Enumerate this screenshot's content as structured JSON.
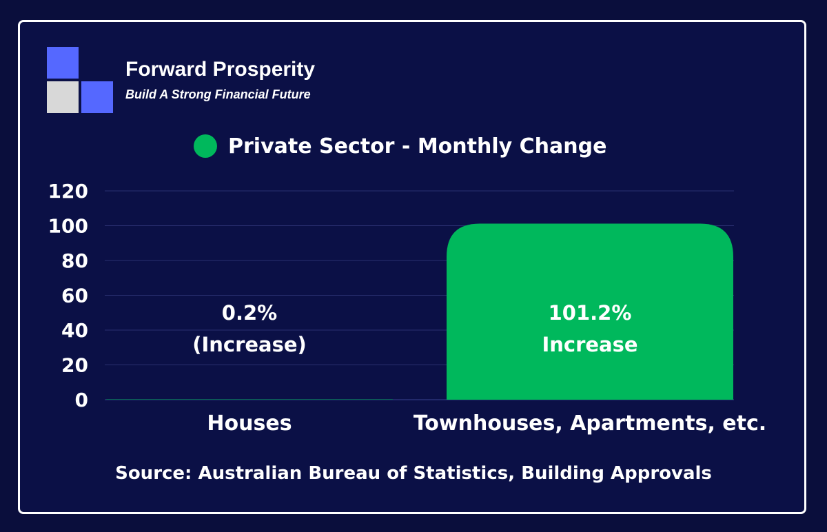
{
  "brand": {
    "name": "Forward Prosperity",
    "tagline": "Build A Strong Financial Future"
  },
  "chart_data": {
    "type": "bar",
    "title": "",
    "categories": [
      "Houses",
      "Townhouses, Apartments, etc."
    ],
    "series": [
      {
        "name": "Private Sector - Monthly Change",
        "values": [
          0.2,
          101.2
        ],
        "data_labels": [
          "0.2%\n(Increase)",
          "101.2%\nIncrease"
        ],
        "color": "#00b85c"
      }
    ],
    "ylim": [
      0,
      120
    ],
    "yticks": [
      0,
      20,
      40,
      60,
      80,
      100,
      120
    ],
    "xlabel": "",
    "ylabel": "",
    "grid": true,
    "legend_position": "top"
  },
  "source": "Source: Australian Bureau of Statistics, Building Approvals",
  "colors": {
    "background": "#0b1046",
    "bar": "#00b85c",
    "logo_blue": "#5568ff",
    "logo_gray": "#d8d8d8",
    "grid": "#2a3070"
  }
}
